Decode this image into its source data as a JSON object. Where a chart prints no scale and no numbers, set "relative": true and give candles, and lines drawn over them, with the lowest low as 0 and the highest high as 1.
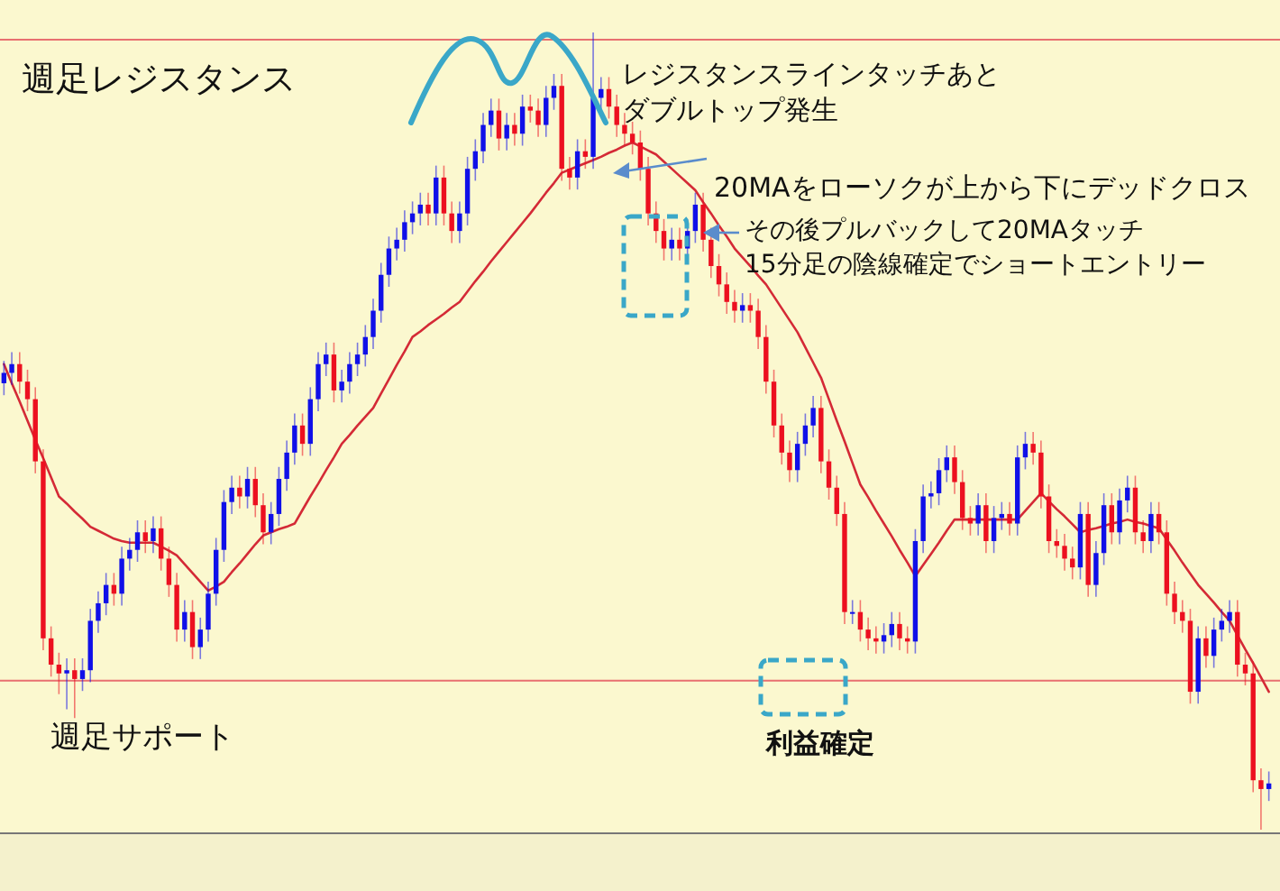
{
  "chart_data": {
    "type": "candlestick",
    "relative": true,
    "categories": [
      null,
      null,
      null,
      null,
      null,
      null,
      null,
      null,
      null,
      null,
      null,
      null,
      null,
      null,
      null,
      null,
      null,
      null,
      null,
      null,
      null,
      null,
      null,
      null,
      null,
      null,
      null,
      null,
      null,
      null,
      null,
      null,
      null,
      null,
      null,
      null,
      null,
      null,
      null,
      null,
      null,
      null,
      null,
      null,
      null,
      null,
      null,
      null,
      null,
      null,
      null,
      null,
      null,
      null,
      null,
      null,
      null,
      null,
      null,
      null,
      null,
      null,
      null,
      null,
      null,
      null,
      null,
      null,
      null,
      null,
      null,
      null,
      null,
      null,
      null,
      null,
      null,
      null,
      null,
      null,
      null,
      null,
      null,
      null,
      null,
      null,
      null,
      null,
      null,
      null,
      null,
      null,
      null,
      null,
      null,
      null,
      null,
      null,
      null,
      null,
      null,
      null,
      null,
      null,
      null,
      null,
      null,
      null,
      null,
      null,
      null,
      null,
      null,
      null,
      null,
      null,
      null,
      null,
      null,
      null,
      null,
      null,
      null,
      null,
      null,
      null,
      null,
      null,
      null,
      null,
      null,
      null,
      null,
      null,
      null,
      null,
      null,
      null,
      null,
      null,
      null,
      null,
      null,
      null,
      null,
      null,
      null,
      null,
      null,
      null,
      null,
      null,
      null,
      null,
      null,
      null,
      null,
      null,
      null,
      null,
      null,
      null
    ],
    "ohlc": [
      [
        0.56,
        0.588,
        0.545,
        0.573
      ],
      [
        0.573,
        0.599,
        0.558,
        0.584
      ],
      [
        0.584,
        0.599,
        0.547,
        0.562
      ],
      [
        0.562,
        0.577,
        0.525,
        0.54
      ],
      [
        0.54,
        0.555,
        0.447,
        0.462
      ],
      [
        0.462,
        0.477,
        0.225,
        0.24
      ],
      [
        0.24,
        0.255,
        0.192,
        0.207
      ],
      [
        0.207,
        0.222,
        0.17,
        0.196
      ],
      [
        0.196,
        0.215,
        0.151,
        0.2
      ],
      [
        0.2,
        0.215,
        0.14,
        0.189
      ],
      [
        0.189,
        0.215,
        0.174,
        0.2
      ],
      [
        0.2,
        0.277,
        0.185,
        0.262
      ],
      [
        0.262,
        0.299,
        0.247,
        0.284
      ],
      [
        0.284,
        0.322,
        0.269,
        0.307
      ],
      [
        0.307,
        0.322,
        0.281,
        0.296
      ],
      [
        0.296,
        0.355,
        0.281,
        0.34
      ],
      [
        0.34,
        0.366,
        0.325,
        0.351
      ],
      [
        0.351,
        0.388,
        0.336,
        0.373
      ],
      [
        0.373,
        0.388,
        0.347,
        0.362
      ],
      [
        0.362,
        0.393,
        0.347,
        0.378
      ],
      [
        0.378,
        0.393,
        0.325,
        0.34
      ],
      [
        0.34,
        0.355,
        0.292,
        0.307
      ],
      [
        0.307,
        0.322,
        0.236,
        0.251
      ],
      [
        0.251,
        0.288,
        0.236,
        0.273
      ],
      [
        0.273,
        0.288,
        0.214,
        0.229
      ],
      [
        0.229,
        0.266,
        0.214,
        0.251
      ],
      [
        0.251,
        0.311,
        0.236,
        0.296
      ],
      [
        0.296,
        0.366,
        0.281,
        0.351
      ],
      [
        0.351,
        0.426,
        0.336,
        0.411
      ],
      [
        0.411,
        0.444,
        0.396,
        0.429
      ],
      [
        0.429,
        0.444,
        0.403,
        0.418
      ],
      [
        0.418,
        0.455,
        0.403,
        0.44
      ],
      [
        0.44,
        0.455,
        0.392,
        0.407
      ],
      [
        0.407,
        0.422,
        0.358,
        0.373
      ],
      [
        0.373,
        0.411,
        0.358,
        0.396
      ],
      [
        0.396,
        0.455,
        0.381,
        0.44
      ],
      [
        0.44,
        0.488,
        0.425,
        0.473
      ],
      [
        0.473,
        0.522,
        0.458,
        0.507
      ],
      [
        0.507,
        0.522,
        0.469,
        0.484
      ],
      [
        0.484,
        0.555,
        0.469,
        0.54
      ],
      [
        0.54,
        0.599,
        0.525,
        0.584
      ],
      [
        0.584,
        0.611,
        0.569,
        0.596
      ],
      [
        0.596,
        0.611,
        0.536,
        0.551
      ],
      [
        0.551,
        0.577,
        0.536,
        0.562
      ],
      [
        0.562,
        0.599,
        0.547,
        0.584
      ],
      [
        0.584,
        0.611,
        0.569,
        0.596
      ],
      [
        0.596,
        0.633,
        0.581,
        0.618
      ],
      [
        0.618,
        0.666,
        0.603,
        0.651
      ],
      [
        0.651,
        0.711,
        0.636,
        0.696
      ],
      [
        0.696,
        0.744,
        0.681,
        0.729
      ],
      [
        0.729,
        0.755,
        0.714,
        0.74
      ],
      [
        0.74,
        0.777,
        0.725,
        0.762
      ],
      [
        0.762,
        0.788,
        0.747,
        0.773
      ],
      [
        0.773,
        0.799,
        0.758,
        0.784
      ],
      [
        0.784,
        0.799,
        0.758,
        0.773
      ],
      [
        0.773,
        0.833,
        0.758,
        0.818
      ],
      [
        0.818,
        0.833,
        0.758,
        0.773
      ],
      [
        0.773,
        0.788,
        0.736,
        0.751
      ],
      [
        0.751,
        0.788,
        0.736,
        0.773
      ],
      [
        0.773,
        0.844,
        0.758,
        0.829
      ],
      [
        0.829,
        0.866,
        0.814,
        0.851
      ],
      [
        0.851,
        0.899,
        0.836,
        0.884
      ],
      [
        0.884,
        0.917,
        0.869,
        0.902
      ],
      [
        0.902,
        0.917,
        0.852,
        0.867
      ],
      [
        0.867,
        0.899,
        0.852,
        0.884
      ],
      [
        0.884,
        0.899,
        0.858,
        0.873
      ],
      [
        0.873,
        0.922,
        0.858,
        0.907
      ],
      [
        0.907,
        0.922,
        0.887,
        0.902
      ],
      [
        0.902,
        0.917,
        0.869,
        0.884
      ],
      [
        0.884,
        0.933,
        0.869,
        0.918
      ],
      [
        0.918,
        0.948,
        0.903,
        0.933
      ],
      [
        0.933,
        0.948,
        0.814,
        0.829
      ],
      [
        0.829,
        0.844,
        0.803,
        0.818
      ],
      [
        0.818,
        0.866,
        0.803,
        0.851
      ],
      [
        0.851,
        0.866,
        0.829,
        0.844
      ],
      [
        0.844,
        1.0,
        0.829,
        0.918
      ],
      [
        0.918,
        0.944,
        0.903,
        0.929
      ],
      [
        0.929,
        0.944,
        0.892,
        0.907
      ],
      [
        0.907,
        0.922,
        0.869,
        0.884
      ],
      [
        0.884,
        0.899,
        0.858,
        0.873
      ],
      [
        0.873,
        0.888,
        0.847,
        0.862
      ],
      [
        0.862,
        0.877,
        0.814,
        0.829
      ],
      [
        0.829,
        0.844,
        0.758,
        0.773
      ],
      [
        0.773,
        0.788,
        0.736,
        0.751
      ],
      [
        0.751,
        0.766,
        0.714,
        0.729
      ],
      [
        0.729,
        0.755,
        0.714,
        0.74
      ],
      [
        0.74,
        0.755,
        0.714,
        0.729
      ],
      [
        0.729,
        0.766,
        0.714,
        0.751
      ],
      [
        0.751,
        0.799,
        0.736,
        0.784
      ],
      [
        0.784,
        0.799,
        0.725,
        0.74
      ],
      [
        0.74,
        0.755,
        0.692,
        0.707
      ],
      [
        0.707,
        0.722,
        0.669,
        0.684
      ],
      [
        0.684,
        0.699,
        0.647,
        0.662
      ],
      [
        0.662,
        0.677,
        0.636,
        0.651
      ],
      [
        0.651,
        0.673,
        0.636,
        0.658
      ],
      [
        0.658,
        0.673,
        0.636,
        0.651
      ],
      [
        0.651,
        0.666,
        0.603,
        0.618
      ],
      [
        0.618,
        0.633,
        0.547,
        0.562
      ],
      [
        0.562,
        0.577,
        0.492,
        0.507
      ],
      [
        0.507,
        0.522,
        0.458,
        0.473
      ],
      [
        0.473,
        0.488,
        0.436,
        0.451
      ],
      [
        0.451,
        0.499,
        0.436,
        0.484
      ],
      [
        0.484,
        0.522,
        0.469,
        0.507
      ],
      [
        0.507,
        0.544,
        0.492,
        0.529
      ],
      [
        0.529,
        0.544,
        0.447,
        0.462
      ],
      [
        0.462,
        0.477,
        0.414,
        0.429
      ],
      [
        0.429,
        0.444,
        0.381,
        0.396
      ],
      [
        0.396,
        0.411,
        0.258,
        0.273
      ],
      [
        0.273,
        0.288,
        0.258,
        0.273
      ],
      [
        0.273,
        0.288,
        0.236,
        0.251
      ],
      [
        0.251,
        0.266,
        0.225,
        0.24
      ],
      [
        0.24,
        0.255,
        0.221,
        0.236
      ],
      [
        0.236,
        0.259,
        0.221,
        0.244
      ],
      [
        0.244,
        0.273,
        0.229,
        0.258
      ],
      [
        0.258,
        0.273,
        0.225,
        0.24
      ],
      [
        0.24,
        0.255,
        0.221,
        0.236
      ],
      [
        0.236,
        0.377,
        0.221,
        0.362
      ],
      [
        0.362,
        0.433,
        0.347,
        0.418
      ],
      [
        0.418,
        0.437,
        0.403,
        0.422
      ],
      [
        0.422,
        0.466,
        0.407,
        0.451
      ],
      [
        0.451,
        0.482,
        0.436,
        0.467
      ],
      [
        0.467,
        0.482,
        0.421,
        0.436
      ],
      [
        0.436,
        0.451,
        0.376,
        0.391
      ],
      [
        0.391,
        0.406,
        0.369,
        0.384
      ],
      [
        0.384,
        0.422,
        0.369,
        0.407
      ],
      [
        0.407,
        0.422,
        0.347,
        0.362
      ],
      [
        0.362,
        0.406,
        0.347,
        0.391
      ],
      [
        0.391,
        0.411,
        0.376,
        0.396
      ],
      [
        0.396,
        0.411,
        0.369,
        0.384
      ],
      [
        0.384,
        0.482,
        0.369,
        0.467
      ],
      [
        0.467,
        0.499,
        0.452,
        0.484
      ],
      [
        0.484,
        0.499,
        0.458,
        0.473
      ],
      [
        0.473,
        0.488,
        0.403,
        0.418
      ],
      [
        0.418,
        0.433,
        0.347,
        0.362
      ],
      [
        0.362,
        0.377,
        0.341,
        0.356
      ],
      [
        0.356,
        0.371,
        0.325,
        0.34
      ],
      [
        0.34,
        0.355,
        0.314,
        0.329
      ],
      [
        0.329,
        0.411,
        0.314,
        0.396
      ],
      [
        0.396,
        0.411,
        0.292,
        0.307
      ],
      [
        0.307,
        0.362,
        0.292,
        0.347
      ],
      [
        0.347,
        0.422,
        0.332,
        0.407
      ],
      [
        0.407,
        0.422,
        0.358,
        0.373
      ],
      [
        0.373,
        0.428,
        0.358,
        0.413
      ],
      [
        0.413,
        0.444,
        0.398,
        0.429
      ],
      [
        0.429,
        0.444,
        0.358,
        0.373
      ],
      [
        0.373,
        0.388,
        0.347,
        0.362
      ],
      [
        0.362,
        0.411,
        0.347,
        0.396
      ],
      [
        0.396,
        0.411,
        0.358,
        0.373
      ],
      [
        0.373,
        0.388,
        0.281,
        0.296
      ],
      [
        0.296,
        0.311,
        0.258,
        0.273
      ],
      [
        0.273,
        0.288,
        0.247,
        0.262
      ],
      [
        0.262,
        0.277,
        0.158,
        0.173
      ],
      [
        0.173,
        0.255,
        0.158,
        0.24
      ],
      [
        0.24,
        0.255,
        0.203,
        0.218
      ],
      [
        0.218,
        0.266,
        0.203,
        0.251
      ],
      [
        0.251,
        0.277,
        0.236,
        0.262
      ],
      [
        0.262,
        0.288,
        0.247,
        0.273
      ],
      [
        0.273,
        0.288,
        0.192,
        0.207
      ],
      [
        0.207,
        0.222,
        0.181,
        0.196
      ],
      [
        0.196,
        0.211,
        0.047,
        0.062
      ],
      [
        0.062,
        0.077,
        0.0,
        0.051
      ],
      [
        0.051,
        0.073,
        0.036,
        0.058
      ]
    ],
    "series": [
      {
        "type": "line",
        "color": "#d42a36",
        "values": [
          0.584,
          0.56,
          0.537,
          0.513,
          0.489,
          0.466,
          0.442,
          0.418,
          0.409,
          0.399,
          0.39,
          0.38,
          0.375,
          0.37,
          0.365,
          0.362,
          0.36,
          0.36,
          0.36,
          0.36,
          0.355,
          0.35,
          0.344,
          0.333,
          0.322,
          0.311,
          0.3,
          0.305,
          0.311,
          0.323,
          0.334,
          0.346,
          0.358,
          0.369,
          0.373,
          0.377,
          0.38,
          0.384,
          0.401,
          0.418,
          0.434,
          0.451,
          0.467,
          0.484,
          0.495,
          0.507,
          0.518,
          0.529,
          0.547,
          0.565,
          0.583,
          0.6,
          0.618,
          0.625,
          0.633,
          0.64,
          0.647,
          0.655,
          0.662,
          0.675,
          0.688,
          0.7,
          0.713,
          0.725,
          0.737,
          0.749,
          0.761,
          0.773,
          0.786,
          0.799,
          0.811,
          0.824,
          0.828,
          0.832,
          0.836,
          0.84,
          0.844,
          0.849,
          0.853,
          0.858,
          0.862,
          0.857,
          0.852,
          0.847,
          0.838,
          0.829,
          0.82,
          0.811,
          0.802,
          0.787,
          0.773,
          0.758,
          0.744,
          0.729,
          0.718,
          0.707,
          0.695,
          0.684,
          0.669,
          0.654,
          0.639,
          0.624,
          0.605,
          0.586,
          0.567,
          0.54,
          0.513,
          0.487,
          0.46,
          0.433,
          0.417,
          0.4,
          0.384,
          0.368,
          0.351,
          0.335,
          0.318,
          0.332,
          0.346,
          0.36,
          0.375,
          0.389,
          0.389,
          0.389,
          0.389,
          0.389,
          0.389,
          0.389,
          0.389,
          0.389,
          0.4,
          0.411,
          0.422,
          0.412,
          0.402,
          0.393,
          0.383,
          0.373,
          0.376,
          0.378,
          0.381,
          0.384,
          0.386,
          0.389,
          0.386,
          0.384,
          0.381,
          0.378,
          0.364,
          0.35,
          0.335,
          0.321,
          0.307,
          0.296,
          0.285,
          0.273,
          0.262,
          0.244,
          0.226,
          0.209,
          0.191,
          0.173
        ]
      }
    ],
    "ref_lines": [
      {
        "axis": "y",
        "value": 0.991,
        "color": "#e87070"
      },
      {
        "axis": "y",
        "value": 0.187,
        "color": "#e87070"
      }
    ],
    "annotations": [
      "週足レジスタンス",
      "レジスタンスラインタッチあと",
      "ダブルトップ発生",
      "20MAをローソクが上から下にデッドクロス",
      "その後プルバックして20MAタッチ",
      "15分足の陰線確定でショートエントリー",
      "週足サポート",
      "利益確定"
    ],
    "grid": false
  }
}
